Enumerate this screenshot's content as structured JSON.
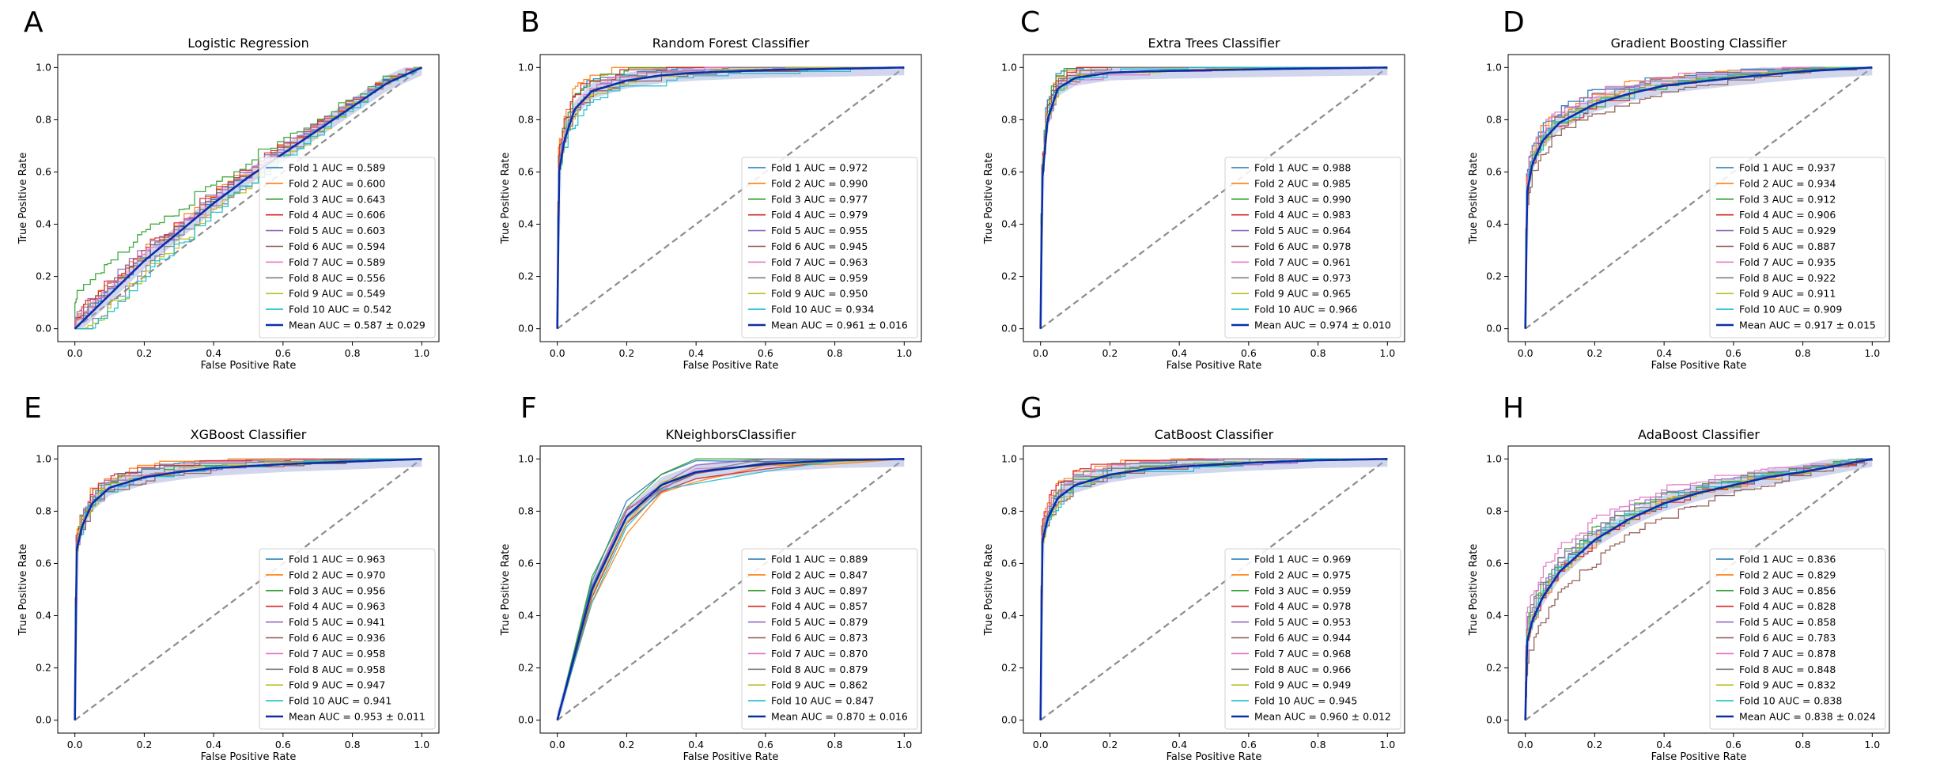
{
  "figure": {
    "x_tick_labels": [
      "0.0",
      "0.2",
      "0.4",
      "0.6",
      "0.8",
      "1.0"
    ],
    "y_tick_labels": [
      "0.0",
      "0.2",
      "0.4",
      "0.6",
      "0.8",
      "1.0"
    ]
  },
  "colors": {
    "fold_colors": [
      "#1f77b4",
      "#ff7f0e",
      "#2ca02c",
      "#d62728",
      "#9467bd",
      "#8c564b",
      "#e377c2",
      "#7f7f7f",
      "#bcbd22",
      "#17becf"
    ],
    "mean": "#0a2ea8",
    "chance": "#8c8c8c"
  },
  "chart_data": [
    {
      "type": "line",
      "panel": "A",
      "title": "Logistic Regression",
      "xlabel": "False Positive Rate",
      "ylabel": "True Positive Rate",
      "xlim": [
        0,
        1
      ],
      "ylim": [
        0,
        1
      ],
      "legend": [
        "Fold 1 AUC = 0.589",
        "Fold 2 AUC = 0.600",
        "Fold 3 AUC = 0.643",
        "Fold 4 AUC = 0.606",
        "Fold 5 AUC = 0.603",
        "Fold 6 AUC = 0.594",
        "Fold 7 AUC = 0.589",
        "Fold 8 AUC = 0.556",
        "Fold 9 AUC = 0.549",
        "Fold 10 AUC = 0.542",
        "Mean AUC = 0.587 ± 0.029"
      ],
      "fold_auc": [
        0.589,
        0.6,
        0.643,
        0.606,
        0.603,
        0.594,
        0.589,
        0.556,
        0.549,
        0.542
      ],
      "mean_auc": 0.587,
      "mean_std": 0.029,
      "mean_curve": {
        "x": [
          0,
          0.1,
          0.2,
          0.3,
          0.4,
          0.5,
          0.6,
          0.7,
          0.8,
          0.9,
          1.0
        ],
        "y": [
          0,
          0.13,
          0.26,
          0.37,
          0.48,
          0.58,
          0.67,
          0.76,
          0.85,
          0.94,
          1.0
        ]
      }
    },
    {
      "type": "line",
      "panel": "B",
      "title": "Random Forest Classifier",
      "xlabel": "False Positive Rate",
      "ylabel": "True Positive Rate",
      "xlim": [
        0,
        1
      ],
      "ylim": [
        0,
        1
      ],
      "legend": [
        "Fold 1 AUC = 0.972",
        "Fold 2 AUC = 0.990",
        "Fold 3 AUC = 0.977",
        "Fold 4 AUC = 0.979",
        "Fold 5 AUC = 0.955",
        "Fold 6 AUC = 0.945",
        "Fold 7 AUC = 0.963",
        "Fold 8 AUC = 0.959",
        "Fold 9 AUC = 0.950",
        "Fold 10 AUC = 0.934",
        "Mean AUC = 0.961 ± 0.016"
      ],
      "fold_auc": [
        0.972,
        0.99,
        0.977,
        0.979,
        0.955,
        0.945,
        0.963,
        0.959,
        0.95,
        0.934
      ],
      "mean_auc": 0.961,
      "mean_std": 0.016,
      "mean_curve": {
        "x": [
          0,
          0.005,
          0.02,
          0.05,
          0.1,
          0.2,
          0.3,
          0.4,
          0.6,
          0.8,
          1.0
        ],
        "y": [
          0,
          0.6,
          0.72,
          0.84,
          0.91,
          0.95,
          0.97,
          0.98,
          0.99,
          0.995,
          1.0
        ]
      }
    },
    {
      "type": "line",
      "panel": "C",
      "title": "Extra Trees Classifier",
      "xlabel": "False Positive Rate",
      "ylabel": "True Positive Rate",
      "xlim": [
        0,
        1
      ],
      "ylim": [
        0,
        1
      ],
      "legend": [
        "Fold 1 AUC = 0.988",
        "Fold 2 AUC = 0.985",
        "Fold 3 AUC = 0.990",
        "Fold 4 AUC = 0.983",
        "Fold 5 AUC = 0.964",
        "Fold 6 AUC = 0.978",
        "Fold 7 AUC = 0.961",
        "Fold 8 AUC = 0.973",
        "Fold 9 AUC = 0.965",
        "Fold 10 AUC = 0.966",
        "Mean AUC = 0.974 ± 0.010"
      ],
      "fold_auc": [
        0.988,
        0.985,
        0.99,
        0.983,
        0.964,
        0.978,
        0.961,
        0.973,
        0.965,
        0.966
      ],
      "mean_auc": 0.974,
      "mean_std": 0.01,
      "mean_curve": {
        "x": [
          0,
          0.005,
          0.02,
          0.05,
          0.1,
          0.2,
          0.3,
          0.5,
          0.7,
          1.0
        ],
        "y": [
          0,
          0.57,
          0.8,
          0.92,
          0.96,
          0.98,
          0.985,
          0.99,
          0.995,
          1.0
        ]
      }
    },
    {
      "type": "line",
      "panel": "D",
      "title": "Gradient Boosting Classifier",
      "xlabel": "False Positive Rate",
      "ylabel": "True Positive Rate",
      "xlim": [
        0,
        1
      ],
      "ylim": [
        0,
        1
      ],
      "legend": [
        "Fold 1 AUC = 0.937",
        "Fold 2 AUC = 0.934",
        "Fold 3 AUC = 0.912",
        "Fold 4 AUC = 0.906",
        "Fold 5 AUC = 0.929",
        "Fold 6 AUC = 0.887",
        "Fold 7 AUC = 0.935",
        "Fold 8 AUC = 0.922",
        "Fold 9 AUC = 0.911",
        "Fold 10 AUC = 0.909",
        "Mean AUC = 0.917 ± 0.015"
      ],
      "fold_auc": [
        0.937,
        0.934,
        0.912,
        0.906,
        0.929,
        0.887,
        0.935,
        0.922,
        0.911,
        0.909
      ],
      "mean_auc": 0.917,
      "mean_std": 0.015,
      "mean_curve": {
        "x": [
          0,
          0.005,
          0.02,
          0.05,
          0.1,
          0.2,
          0.3,
          0.4,
          0.6,
          0.8,
          1.0
        ],
        "y": [
          0,
          0.52,
          0.63,
          0.72,
          0.79,
          0.86,
          0.9,
          0.93,
          0.96,
          0.985,
          1.0
        ]
      }
    },
    {
      "type": "line",
      "panel": "E",
      "title": "XGBoost Classifier",
      "xlabel": "False Positive Rate",
      "ylabel": "True Positive Rate",
      "xlim": [
        0,
        1
      ],
      "ylim": [
        0,
        1
      ],
      "legend": [
        "Fold 1 AUC = 0.963",
        "Fold 2 AUC = 0.970",
        "Fold 3 AUC = 0.956",
        "Fold 4 AUC = 0.963",
        "Fold 5 AUC = 0.941",
        "Fold 6 AUC = 0.936",
        "Fold 7 AUC = 0.958",
        "Fold 8 AUC = 0.958",
        "Fold 9 AUC = 0.947",
        "Fold 10 AUC = 0.941",
        "Mean AUC = 0.953 ± 0.011"
      ],
      "fold_auc": [
        0.963,
        0.97,
        0.956,
        0.963,
        0.941,
        0.936,
        0.958,
        0.958,
        0.947,
        0.941
      ],
      "mean_auc": 0.953,
      "mean_std": 0.011,
      "mean_curve": {
        "x": [
          0,
          0.005,
          0.02,
          0.05,
          0.1,
          0.2,
          0.3,
          0.4,
          0.6,
          0.8,
          1.0
        ],
        "y": [
          0,
          0.65,
          0.74,
          0.83,
          0.89,
          0.93,
          0.95,
          0.965,
          0.98,
          0.99,
          1.0
        ]
      }
    },
    {
      "type": "line",
      "panel": "F",
      "title": "KNeighborsClassifier",
      "xlabel": "False Positive Rate",
      "ylabel": "True Positive Rate",
      "xlim": [
        0,
        1
      ],
      "ylim": [
        0,
        1
      ],
      "legend": [
        "Fold 1 AUC = 0.889",
        "Fold 2 AUC = 0.847",
        "Fold 3 AUC = 0.897",
        "Fold 4 AUC = 0.857",
        "Fold 5 AUC = 0.879",
        "Fold 6 AUC = 0.873",
        "Fold 7 AUC = 0.870",
        "Fold 8 AUC = 0.879",
        "Fold 9 AUC = 0.862",
        "Fold 10 AUC = 0.847",
        "Mean AUC = 0.870 ± 0.016"
      ],
      "fold_auc": [
        0.889,
        0.847,
        0.897,
        0.857,
        0.879,
        0.873,
        0.87,
        0.879,
        0.862,
        0.847
      ],
      "mean_auc": 0.87,
      "mean_std": 0.016,
      "mean_curve": {
        "x": [
          0,
          0.1,
          0.2,
          0.3,
          0.4,
          0.6,
          0.8,
          1.0
        ],
        "y": [
          0,
          0.5,
          0.78,
          0.9,
          0.95,
          0.98,
          0.995,
          1.0
        ]
      }
    },
    {
      "type": "line",
      "panel": "G",
      "title": "CatBoost Classifier",
      "xlabel": "False Positive Rate",
      "ylabel": "True Positive Rate",
      "xlim": [
        0,
        1
      ],
      "ylim": [
        0,
        1
      ],
      "legend": [
        "Fold 1 AUC = 0.969",
        "Fold 2 AUC = 0.975",
        "Fold 3 AUC = 0.959",
        "Fold 4 AUC = 0.978",
        "Fold 5 AUC = 0.953",
        "Fold 6 AUC = 0.944",
        "Fold 7 AUC = 0.968",
        "Fold 8 AUC = 0.966",
        "Fold 9 AUC = 0.949",
        "Fold 10 AUC = 0.945",
        "Mean AUC = 0.960 ± 0.012"
      ],
      "fold_auc": [
        0.969,
        0.975,
        0.959,
        0.978,
        0.953,
        0.944,
        0.968,
        0.966,
        0.949,
        0.945
      ],
      "mean_auc": 0.96,
      "mean_std": 0.012,
      "mean_curve": {
        "x": [
          0,
          0.005,
          0.02,
          0.05,
          0.1,
          0.2,
          0.3,
          0.4,
          0.6,
          0.8,
          1.0
        ],
        "y": [
          0,
          0.68,
          0.77,
          0.85,
          0.9,
          0.94,
          0.96,
          0.97,
          0.985,
          0.995,
          1.0
        ]
      }
    },
    {
      "type": "line",
      "panel": "H",
      "title": "AdaBoost Classifier",
      "xlabel": "False Positive Rate",
      "ylabel": "True Positive Rate",
      "xlim": [
        0,
        1
      ],
      "ylim": [
        0,
        1
      ],
      "legend": [
        "Fold 1 AUC = 0.836",
        "Fold 2 AUC = 0.829",
        "Fold 3 AUC = 0.856",
        "Fold 4 AUC = 0.828",
        "Fold 5 AUC = 0.858",
        "Fold 6 AUC = 0.783",
        "Fold 7 AUC = 0.878",
        "Fold 8 AUC = 0.848",
        "Fold 9 AUC = 0.832",
        "Fold 10 AUC = 0.838",
        "Mean AUC = 0.838 ± 0.024"
      ],
      "fold_auc": [
        0.836,
        0.829,
        0.856,
        0.828,
        0.858,
        0.783,
        0.878,
        0.848,
        0.832,
        0.838
      ],
      "mean_auc": 0.838,
      "mean_std": 0.024,
      "mean_curve": {
        "x": [
          0,
          0.005,
          0.02,
          0.05,
          0.1,
          0.2,
          0.3,
          0.4,
          0.5,
          0.6,
          0.7,
          0.8,
          0.9,
          1.0
        ],
        "y": [
          0,
          0.3,
          0.38,
          0.47,
          0.57,
          0.69,
          0.77,
          0.83,
          0.87,
          0.9,
          0.93,
          0.95,
          0.975,
          1.0
        ]
      }
    }
  ]
}
